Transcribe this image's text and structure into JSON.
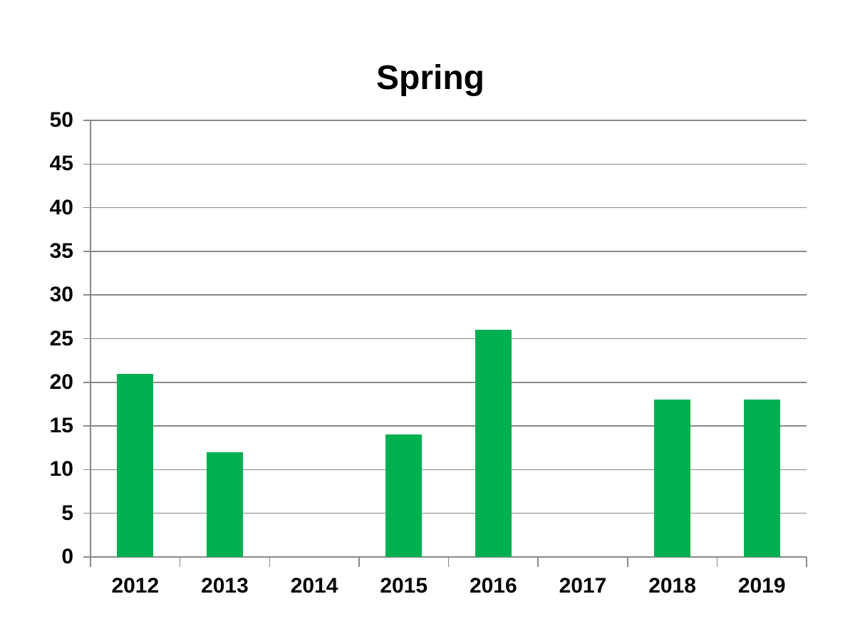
{
  "chart_data": {
    "type": "bar",
    "title": "Spring",
    "categories": [
      "2012",
      "2013",
      "2014",
      "2015",
      "2016",
      "2017",
      "2018",
      "2019"
    ],
    "values": [
      21,
      12,
      0,
      14,
      26,
      0,
      18,
      18
    ],
    "y_ticks": [
      0,
      5,
      10,
      15,
      20,
      25,
      30,
      35,
      40,
      45,
      50
    ],
    "ylim": [
      0,
      50
    ],
    "xlabel": "",
    "ylabel": "",
    "grid": true,
    "legend_position": "none",
    "bar_color": "#00B050",
    "gridline_color": "#898989",
    "axis_color": "#898989",
    "text_color": "#000000",
    "background_color": "#ffffff"
  }
}
